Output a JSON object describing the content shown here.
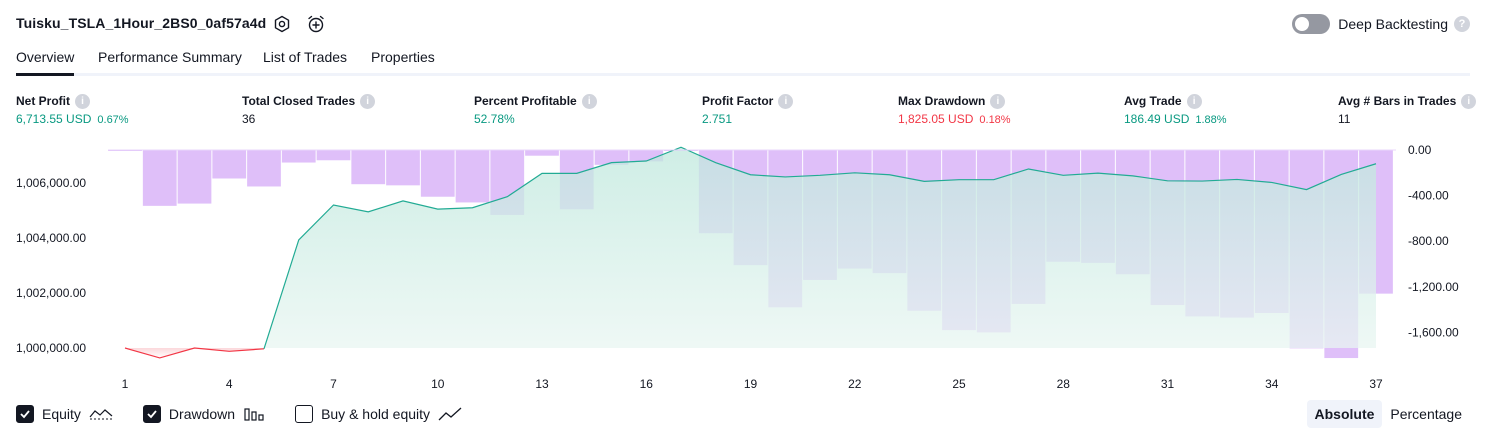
{
  "header": {
    "strategy_name": "Tuisku_TSLA_1Hour_2BS0_0af57a4d",
    "settings_icon": "gear-icon",
    "alert_icon": "alarm-clock-plus-icon",
    "deep_backtesting_label": "Deep Backtesting",
    "deep_backtesting_enabled": false
  },
  "tabs": [
    {
      "label": "Overview",
      "active": true
    },
    {
      "label": "Performance Summary",
      "active": false
    },
    {
      "label": "List of Trades",
      "active": false
    },
    {
      "label": "Properties",
      "active": false
    }
  ],
  "metrics": [
    {
      "label": "Net Profit",
      "value": "6,713.55 USD",
      "percent": "0.67%",
      "color": "green"
    },
    {
      "label": "Total Closed Trades",
      "value": "36",
      "percent": "",
      "color": "dark"
    },
    {
      "label": "Percent Profitable",
      "value": "52.78%",
      "percent": "",
      "color": "green"
    },
    {
      "label": "Profit Factor",
      "value": "2.751",
      "percent": "",
      "color": "green"
    },
    {
      "label": "Max Drawdown",
      "value": "1,825.05 USD",
      "percent": "0.18%",
      "color": "red"
    },
    {
      "label": "Avg Trade",
      "value": "186.49 USD",
      "percent": "1.88%",
      "color": "green"
    },
    {
      "label": "Avg # Bars in Trades",
      "value": "11",
      "percent": "",
      "color": "dark"
    }
  ],
  "chart_data": {
    "type": "line",
    "x": [
      1,
      2,
      3,
      4,
      5,
      6,
      7,
      8,
      9,
      10,
      11,
      12,
      13,
      14,
      15,
      16,
      17,
      18,
      19,
      20,
      21,
      22,
      23,
      24,
      25,
      26,
      27,
      28,
      29,
      30,
      31,
      32,
      33,
      34,
      35,
      36,
      37
    ],
    "x_ticks": [
      "1",
      "4",
      "7",
      "10",
      "13",
      "16",
      "19",
      "22",
      "25",
      "28",
      "31",
      "34",
      "37"
    ],
    "left_axis_ticks": [
      "1,000,000.00",
      "1,002,000.00",
      "1,004,000.00",
      "1,006,000.00"
    ],
    "right_axis_ticks": [
      "0.00",
      "-400.00",
      "-800.00",
      "-1,200.00",
      "-1,600.00"
    ],
    "left_ylim": [
      999300,
      1006750
    ],
    "right_ylim": [
      -1825,
      0
    ],
    "series": [
      {
        "name": "Equity",
        "axis": "left",
        "style": "area-line",
        "values": [
          1000000,
          999640,
          1000000,
          999880,
          999970,
          1003930,
          1005200,
          1004950,
          1005350,
          1005050,
          1005100,
          1005500,
          1006350,
          1006350,
          1006740,
          1006800,
          1007300,
          1006740,
          1006300,
          1006220,
          1006280,
          1006370,
          1006300,
          1006060,
          1006120,
          1006120,
          1006510,
          1006280,
          1006360,
          1006260,
          1006080,
          1006070,
          1006130,
          1006020,
          1005760,
          1006310,
          1006700
        ]
      },
      {
        "name": "Drawdown",
        "axis": "right",
        "style": "bar",
        "values": [
          0,
          -490,
          -470,
          -250,
          -320,
          -110,
          -90,
          -300,
          -310,
          -410,
          -460,
          -570,
          -50,
          -520,
          -130,
          -100,
          0,
          -730,
          -1010,
          -1380,
          -1140,
          -1040,
          -1080,
          -1410,
          -1580,
          -1600,
          -1350,
          -980,
          -990,
          -1090,
          -1360,
          -1460,
          -1470,
          -1430,
          -1740,
          -1825,
          -1260
        ]
      }
    ],
    "legend": [
      {
        "label": "Equity",
        "checked": true,
        "icon": "equity-line-icon"
      },
      {
        "label": "Drawdown",
        "checked": true,
        "icon": "drawdown-bars-icon"
      },
      {
        "label": "Buy & hold equity",
        "checked": false,
        "icon": "trend-line-icon"
      }
    ],
    "scale_options": [
      {
        "label": "Absolute",
        "active": true
      },
      {
        "label": "Percentage",
        "active": false
      }
    ],
    "colors": {
      "profit_line": "#22ab94",
      "loss_line": "#f23645",
      "profit_fill": "#c7ece3",
      "drawdown_bar": "#d9b4f8"
    }
  }
}
